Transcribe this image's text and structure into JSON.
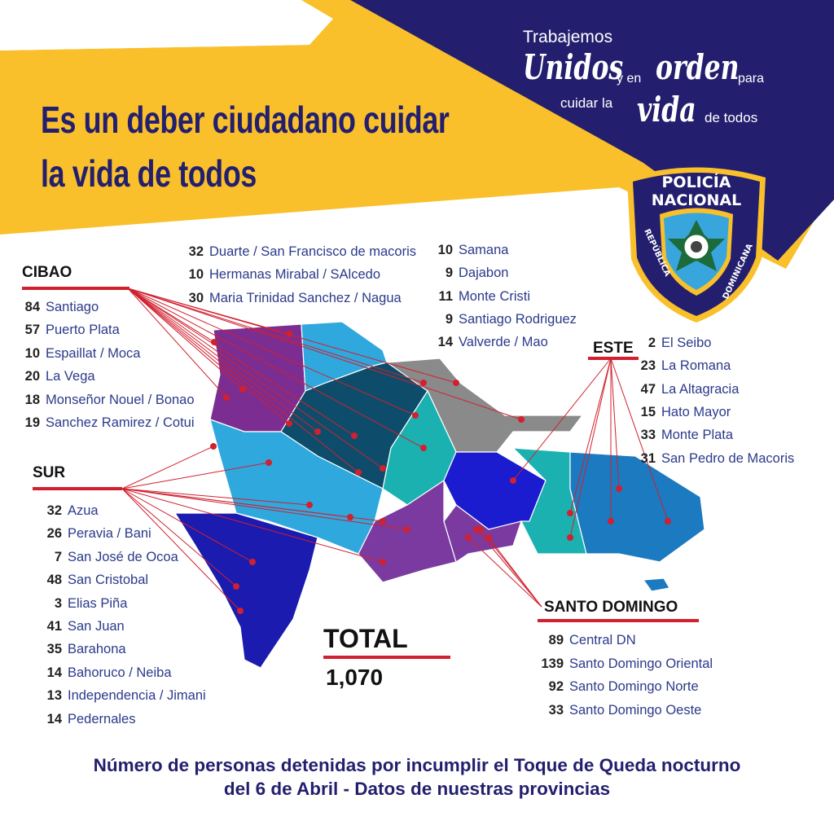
{
  "colors": {
    "navy": "#231f6e",
    "yellow": "#f9c02b",
    "red": "#d1202f",
    "text_blue": "#2b3a8a"
  },
  "headline": [
    "Es un deber ciudadano cuidar",
    "la vida de todos"
  ],
  "slogan": {
    "line1": "Trabajemos",
    "unidos": "Unidos",
    "y_en": "y en",
    "orden": "orden",
    "para": "para",
    "cuidar_la": "cuidar la",
    "vida": "vida",
    "de_todos": "de todos"
  },
  "logo": {
    "top": "POLICÍA NACIONAL",
    "ring": "REPÚBLICA DOMINICANA",
    "icon": "police-shield-logo"
  },
  "cibao": {
    "title": "CIBAO",
    "left": [
      {
        "n": "84",
        "name": "Santiago"
      },
      {
        "n": "57",
        "name": "Puerto Plata"
      },
      {
        "n": "10",
        "name": "Espaillat / Moca"
      },
      {
        "n": "20",
        "name": "La Vega"
      },
      {
        "n": "18",
        "name": "Monseñor Nouel / Bonao"
      },
      {
        "n": "19",
        "name": "Sanchez Ramirez / Cotui"
      }
    ],
    "middle": [
      {
        "n": "32",
        "name": "Duarte / San Francisco de macoris"
      },
      {
        "n": "10",
        "name": "Hermanas Mirabal / SAlcedo"
      },
      {
        "n": "30",
        "name": "Maria Trinidad Sanchez / Nagua"
      }
    ],
    "right": [
      {
        "n": "10",
        "name": "Samana"
      },
      {
        "n": "9",
        "name": "Dajabon"
      },
      {
        "n": "11",
        "name": "Monte Cristi"
      },
      {
        "n": "9",
        "name": "Santiago Rodriguez"
      },
      {
        "n": "14",
        "name": "Valverde / Mao"
      }
    ]
  },
  "sur": {
    "title": "SUR",
    "items": [
      {
        "n": "32",
        "name": "Azua"
      },
      {
        "n": "26",
        "name": "Peravia / Bani"
      },
      {
        "n": "7",
        "name": "San José de Ocoa"
      },
      {
        "n": "48",
        "name": "San Cristobal"
      },
      {
        "n": "3",
        "name": "Elias Piña"
      },
      {
        "n": "41",
        "name": "San Juan"
      },
      {
        "n": "35",
        "name": "Barahona"
      },
      {
        "n": "14",
        "name": "Bahoruco / Neiba"
      },
      {
        "n": "13",
        "name": "Independencia / Jimani"
      },
      {
        "n": "14",
        "name": "Pedernales"
      }
    ]
  },
  "este": {
    "title": "ESTE",
    "items": [
      {
        "n": "2",
        "name": "El Seibo"
      },
      {
        "n": "23",
        "name": "La Romana"
      },
      {
        "n": "47",
        "name": "La Altagracia"
      },
      {
        "n": "15",
        "name": "Hato Mayor"
      },
      {
        "n": "33",
        "name": "Monte Plata"
      },
      {
        "n": "31",
        "name": "San Pedro de Macoris"
      }
    ]
  },
  "santo_domingo": {
    "title": "SANTO DOMINGO",
    "items": [
      {
        "n": "89",
        "name": "Central DN"
      },
      {
        "n": "139",
        "name": "Santo Domingo Oriental"
      },
      {
        "n": "92",
        "name": "Santo Domingo Norte"
      },
      {
        "n": "33",
        "name": "Santo Domingo Oeste"
      }
    ]
  },
  "total": {
    "label": "TOTAL",
    "value": "1,070"
  },
  "footer": [
    "Número de personas detenidas por incumplir el Toque de Queda nocturno",
    "del 6 de Abril - Datos de nuestras provincias"
  ]
}
